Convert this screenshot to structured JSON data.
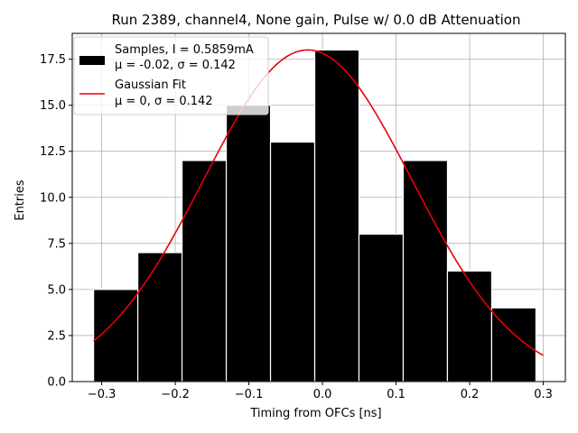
{
  "chart_data": {
    "type": "bar",
    "title": "Run 2389, channel4, None gain, Pulse w/ 0.0 dB Attenuation",
    "xlabel": "Timing from OFCs [ns]",
    "ylabel": "Entries",
    "xlim": [
      -0.34,
      0.33
    ],
    "ylim": [
      0,
      18.9
    ],
    "xticks": [
      -0.3,
      -0.2,
      -0.1,
      0.0,
      0.1,
      0.2,
      0.3
    ],
    "xtick_labels": [
      "−0.3",
      "−0.2",
      "−0.1",
      "0.0",
      "0.1",
      "0.2",
      "0.3"
    ],
    "yticks": [
      0.0,
      2.5,
      5.0,
      7.5,
      10.0,
      12.5,
      15.0,
      17.5
    ],
    "ytick_labels": [
      "0.0",
      "2.5",
      "5.0",
      "7.5",
      "10.0",
      "12.5",
      "15.0",
      "17.5"
    ],
    "grid": true,
    "legend_position": "top-left",
    "histogram": {
      "bin_edges": [
        -0.311,
        -0.2509,
        -0.1908,
        -0.1307,
        -0.0706,
        -0.0105,
        0.0496,
        0.1097,
        0.1698,
        0.2299,
        0.29
      ],
      "counts": [
        5,
        7,
        12,
        15,
        13,
        18,
        8,
        12,
        6,
        4
      ],
      "color": "#000000",
      "edge_color": "#ffffff"
    },
    "series": [
      {
        "name": "Samples, I = 0.5859mA",
        "name_line2": "μ = -0.02, σ = 0.142",
        "kind": "histogram",
        "color": "#000000"
      },
      {
        "name": "Gaussian Fit",
        "name_line2": "μ = 0, σ = 0.142",
        "kind": "line",
        "color": "#e8000b",
        "mu": -0.02,
        "sigma": 0.142,
        "amplitude": 18.0,
        "x_range": [
          -0.311,
          0.3
        ]
      }
    ]
  }
}
